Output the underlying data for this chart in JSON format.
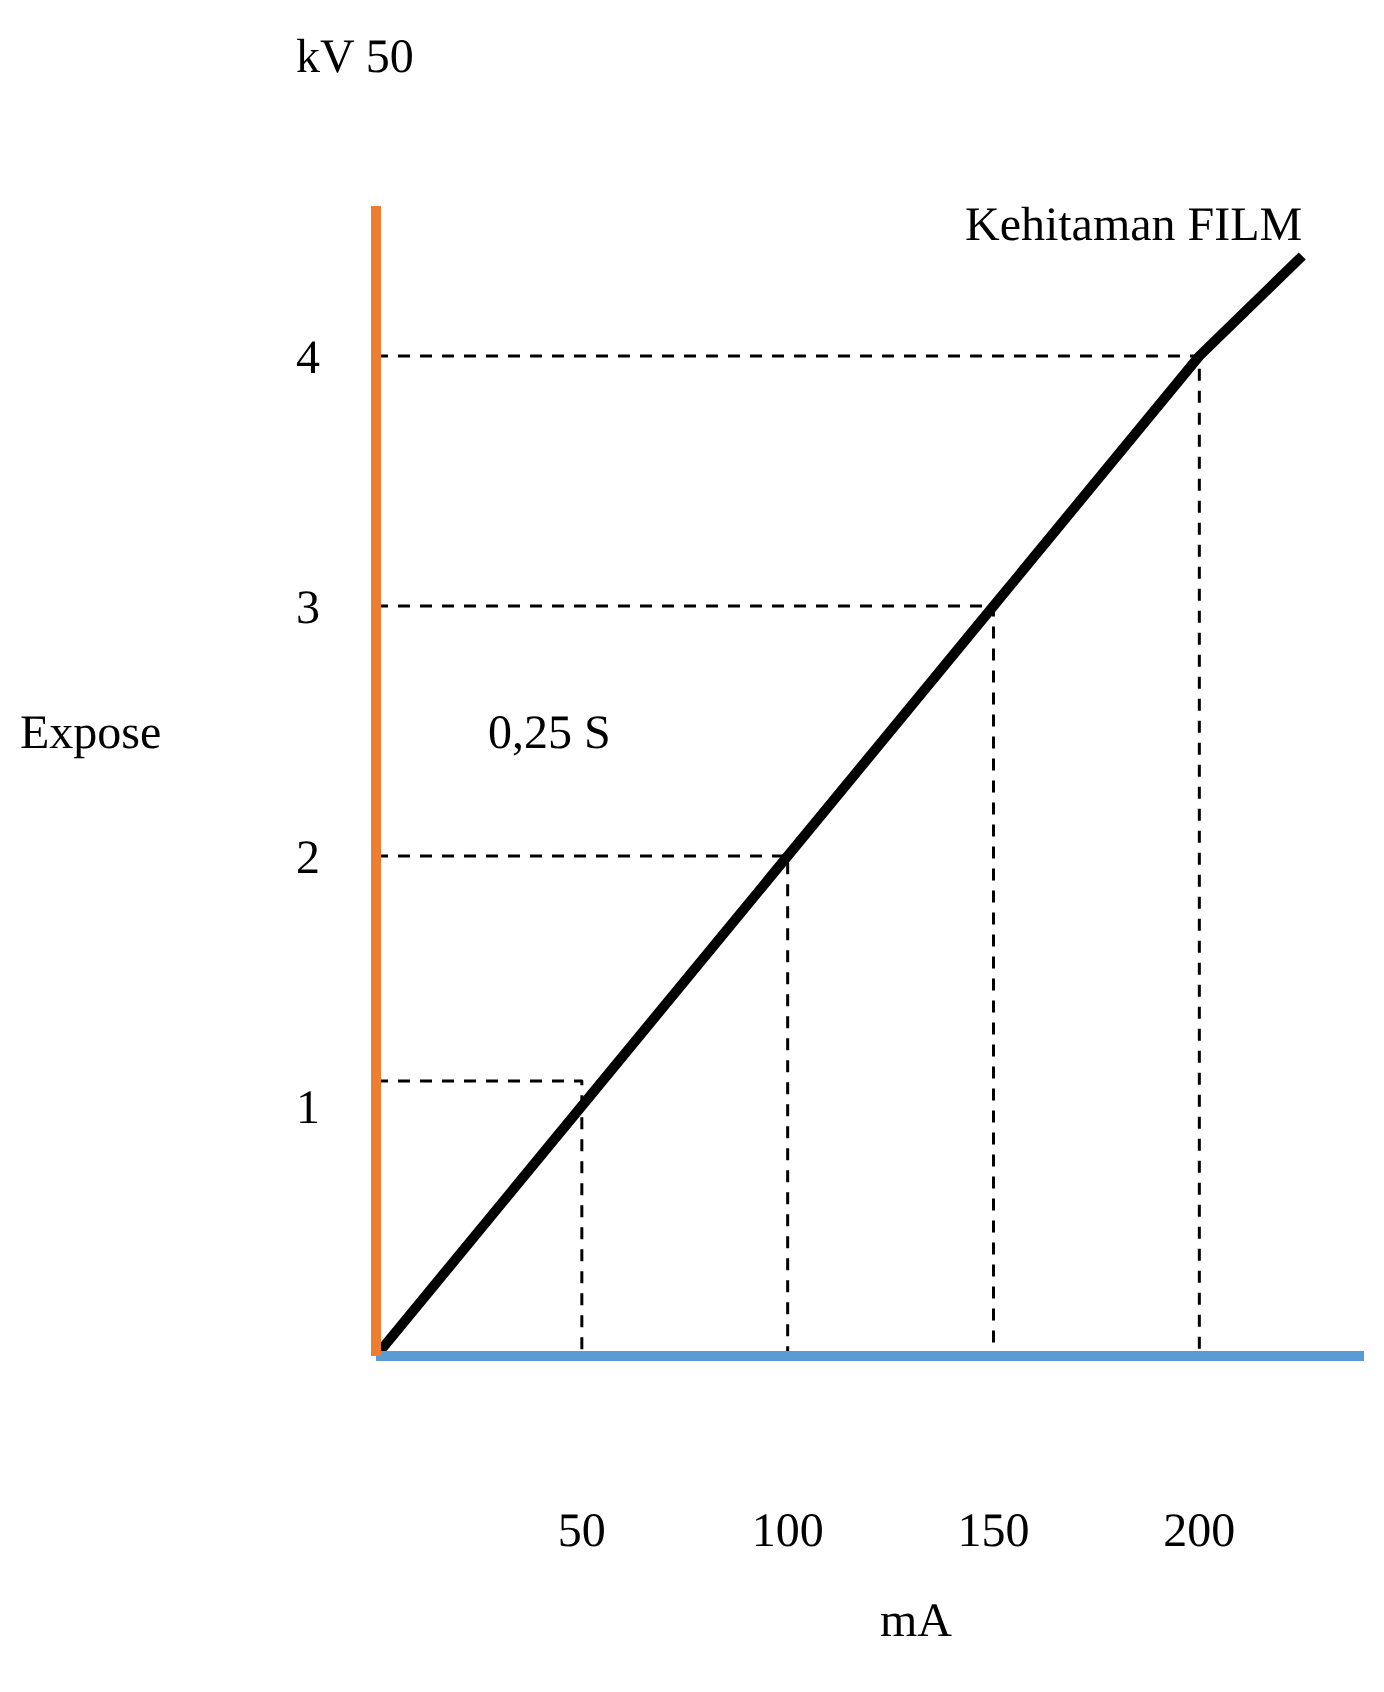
{
  "chart_data": {
    "type": "line",
    "title": "kV 50",
    "xlabel": "mA",
    "ylabel": "Expose",
    "annotations": [
      "0,25 S"
    ],
    "xlim": [
      0,
      240
    ],
    "ylim": [
      0,
      4.6
    ],
    "xticks": [
      50,
      100,
      150,
      200
    ],
    "yticks": [
      1,
      2,
      3,
      4
    ],
    "grid": false,
    "legend": false,
    "marker": "none",
    "series": [
      {
        "name": "Kehitaman FILM",
        "color": "#000000",
        "x": [
          0,
          50,
          100,
          150,
          200,
          225
        ],
        "values": [
          0,
          1,
          2,
          3,
          4,
          4.4
        ]
      },
      {
        "color": "#000000",
        "line_style": "dashed",
        "x": [
          0,
          50,
          50
        ],
        "values": [
          1.1,
          1.1,
          0
        ]
      },
      {
        "color": "#000000",
        "line_style": "dashed",
        "x": [
          0,
          100,
          100
        ],
        "values": [
          2,
          2,
          0
        ]
      },
      {
        "color": "#000000",
        "line_style": "dashed",
        "x": [
          0,
          150,
          150
        ],
        "values": [
          3,
          3,
          0
        ]
      },
      {
        "color": "#000000",
        "line_style": "dashed",
        "x": [
          0,
          200,
          200
        ],
        "values": [
          4,
          4,
          0
        ]
      }
    ]
  }
}
